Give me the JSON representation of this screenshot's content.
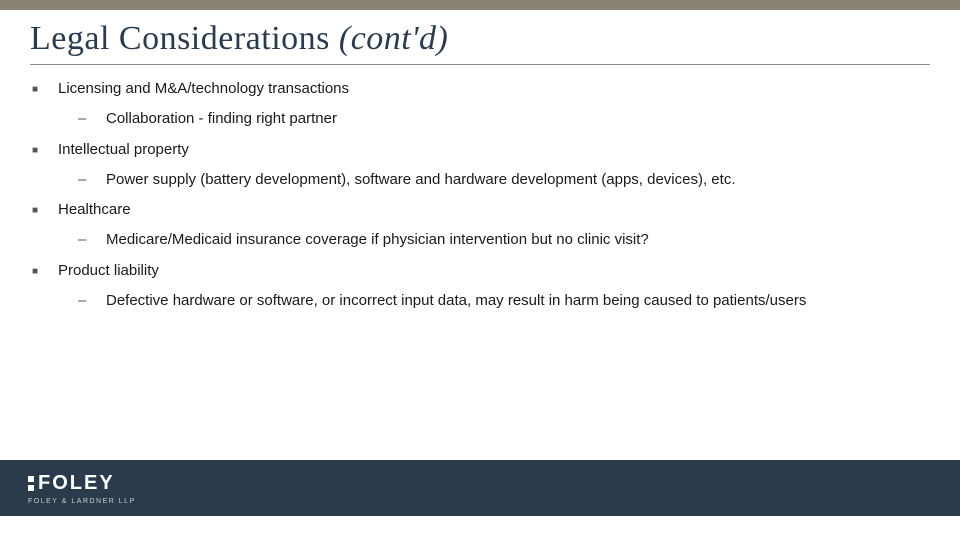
{
  "colors": {
    "top_bar": "#8a8275",
    "title_text": "#2a3b4d",
    "footer_bar": "#2b3b4c",
    "body_text": "#1a1a1a"
  },
  "title": {
    "main": "Legal Considerations ",
    "contd": "(cont'd)"
  },
  "items": [
    {
      "text": "Licensing and M&A/technology transactions",
      "sub": [
        {
          "text": "Collaboration -  finding right partner"
        }
      ]
    },
    {
      "text": "Intellectual property",
      "sub": [
        {
          "text": "Power supply (battery development), software and hardware development (apps, devices), etc."
        }
      ]
    },
    {
      "text": "Healthcare",
      "sub": [
        {
          "text": "Medicare/Medicaid insurance coverage if physician intervention but no clinic visit?"
        }
      ]
    },
    {
      "text": "Product liability",
      "sub": [
        {
          "text": "Defective hardware or software, or incorrect input data, may result in harm being caused to patients/users"
        }
      ]
    }
  ],
  "logo": {
    "name": "FOLEY",
    "subtitle": "FOLEY & LARDNER LLP"
  }
}
